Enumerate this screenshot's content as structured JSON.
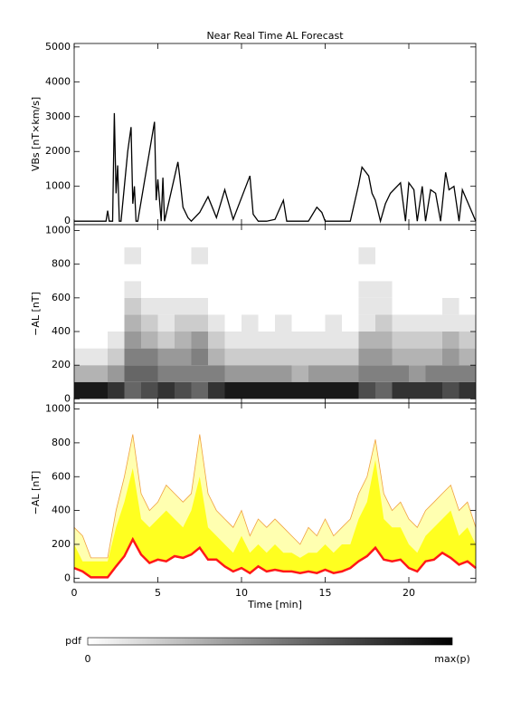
{
  "chart_data": [
    {
      "type": "line",
      "title": "Near Real Time AL Forecast",
      "ylabel": "VBs [nT×km/s]",
      "color": "#000000",
      "xlim": [
        0,
        24
      ],
      "ylim": [
        -100,
        5100
      ],
      "yticks": [
        0,
        1000,
        2000,
        3000,
        4000,
        5000
      ],
      "x": [
        0,
        1.9,
        2.0,
        2.1,
        2.3,
        2.4,
        2.5,
        2.6,
        2.7,
        2.8,
        3.2,
        3.4,
        3.5,
        3.6,
        3.7,
        3.8,
        4.8,
        4.9,
        5.0,
        5.2,
        5.3,
        5.4,
        6.2,
        6.3,
        6.5,
        6.8,
        7.0,
        7.5,
        8.0,
        8.5,
        9.0,
        9.5,
        10.5,
        10.7,
        11.0,
        11.5,
        12.0,
        12.5,
        12.7,
        13.0,
        14.0,
        14.5,
        14.8,
        15.0,
        16.0,
        16.5,
        17.0,
        17.2,
        17.6,
        17.8,
        18.0,
        18.3,
        18.6,
        18.9,
        19.5,
        19.8,
        20.0,
        20.3,
        20.5,
        20.8,
        21.0,
        21.3,
        21.6,
        21.9,
        22.2,
        22.4,
        22.7,
        23.0,
        23.2,
        24.0
      ],
      "values": [
        0,
        0,
        300,
        0,
        0,
        3100,
        800,
        1600,
        0,
        0,
        2000,
        2700,
        500,
        1000,
        0,
        0,
        2850,
        600,
        1200,
        0,
        1250,
        0,
        1700,
        1300,
        400,
        100,
        0,
        250,
        700,
        100,
        900,
        50,
        1300,
        200,
        0,
        0,
        50,
        600,
        0,
        0,
        0,
        400,
        250,
        0,
        0,
        0,
        1050,
        1550,
        1300,
        800,
        600,
        0,
        500,
        800,
        1100,
        0,
        1100,
        900,
        0,
        1000,
        0,
        900,
        800,
        0,
        1400,
        900,
        1000,
        0,
        900,
        0
      ]
    },
    {
      "type": "heatmap",
      "ylabel": "−AL [nT]",
      "xlim": [
        0,
        24
      ],
      "ylim": [
        -25,
        1035
      ],
      "yticks": [
        0,
        200,
        400,
        600,
        800,
        1000
      ],
      "x_bins": [
        0,
        1,
        2,
        3,
        4,
        5,
        6,
        7,
        8,
        9,
        10,
        11,
        12,
        13,
        14,
        15,
        16,
        17,
        18,
        19,
        20,
        21,
        22,
        23,
        24
      ],
      "y_bins": [
        0,
        100,
        200,
        300,
        400,
        500,
        600,
        700,
        800,
        900,
        1000
      ],
      "z": [
        [
          0.9,
          0.3,
          0.1,
          0,
          0,
          0,
          0,
          0,
          0,
          0
        ],
        [
          0.9,
          0.3,
          0.1,
          0,
          0,
          0,
          0,
          0,
          0,
          0
        ],
        [
          0.8,
          0.4,
          0.2,
          0.1,
          0,
          0,
          0,
          0,
          0,
          0
        ],
        [
          0.6,
          0.6,
          0.5,
          0.4,
          0.3,
          0.2,
          0.1,
          0,
          0.1,
          0
        ],
        [
          0.7,
          0.6,
          0.5,
          0.3,
          0.2,
          0.1,
          0,
          0,
          0,
          0
        ],
        [
          0.8,
          0.5,
          0.4,
          0.2,
          0.1,
          0.1,
          0,
          0,
          0,
          0
        ],
        [
          0.7,
          0.5,
          0.4,
          0.3,
          0.2,
          0.1,
          0,
          0,
          0,
          0
        ],
        [
          0.6,
          0.5,
          0.5,
          0.4,
          0.2,
          0.1,
          0,
          0,
          0.1,
          0
        ],
        [
          0.8,
          0.5,
          0.3,
          0.2,
          0.1,
          0,
          0,
          0,
          0,
          0
        ],
        [
          0.9,
          0.4,
          0.2,
          0.1,
          0,
          0,
          0,
          0,
          0,
          0
        ],
        [
          0.9,
          0.4,
          0.2,
          0.1,
          0.1,
          0,
          0,
          0,
          0,
          0
        ],
        [
          0.9,
          0.4,
          0.2,
          0.1,
          0,
          0,
          0,
          0,
          0,
          0
        ],
        [
          0.9,
          0.4,
          0.2,
          0.1,
          0.1,
          0,
          0,
          0,
          0,
          0
        ],
        [
          0.9,
          0.3,
          0.2,
          0.1,
          0,
          0,
          0,
          0,
          0,
          0
        ],
        [
          0.9,
          0.4,
          0.2,
          0.1,
          0,
          0,
          0,
          0,
          0,
          0
        ],
        [
          0.9,
          0.4,
          0.2,
          0.1,
          0.1,
          0,
          0,
          0,
          0,
          0
        ],
        [
          0.9,
          0.4,
          0.2,
          0.1,
          0,
          0,
          0,
          0,
          0,
          0
        ],
        [
          0.7,
          0.5,
          0.4,
          0.3,
          0.1,
          0.1,
          0.1,
          0,
          0.1,
          0
        ],
        [
          0.6,
          0.5,
          0.4,
          0.3,
          0.2,
          0.1,
          0.1,
          0,
          0,
          0
        ],
        [
          0.8,
          0.5,
          0.3,
          0.2,
          0.1,
          0,
          0,
          0,
          0,
          0
        ],
        [
          0.8,
          0.4,
          0.3,
          0.2,
          0.1,
          0,
          0,
          0,
          0,
          0
        ],
        [
          0.8,
          0.5,
          0.3,
          0.2,
          0.1,
          0,
          0,
          0,
          0,
          0
        ],
        [
          0.7,
          0.5,
          0.4,
          0.3,
          0.1,
          0.1,
          0,
          0,
          0,
          0
        ],
        [
          0.8,
          0.5,
          0.3,
          0.2,
          0.1,
          0,
          0,
          0,
          0,
          0
        ]
      ],
      "colorbar": {
        "label": "pdf",
        "min_label": "0",
        "max_label": "max(p)"
      }
    },
    {
      "type": "band",
      "ylabel": "−AL [nT]",
      "xlabel": "Time [min]",
      "xlim": [
        0,
        24
      ],
      "xticks": [
        0,
        5,
        10,
        15,
        20
      ],
      "ylim": [
        -25,
        1035
      ],
      "yticks": [
        0,
        200,
        400,
        600,
        800,
        1000
      ],
      "x": [
        0,
        0.5,
        1,
        1.5,
        2,
        2.5,
        3,
        3.5,
        4,
        4.5,
        5,
        5.5,
        6,
        6.5,
        7,
        7.5,
        8,
        8.5,
        9,
        9.5,
        10,
        10.5,
        11,
        11.5,
        12,
        12.5,
        13,
        13.5,
        14,
        14.5,
        15,
        15.5,
        16,
        16.5,
        17,
        17.5,
        18,
        18.5,
        19,
        19.5,
        20,
        20.5,
        21,
        21.5,
        22,
        22.5,
        23,
        23.5,
        24
      ],
      "series": [
        {
          "color": "#ff1818",
          "values": [
            60,
            40,
            5,
            5,
            5,
            70,
            130,
            230,
            140,
            90,
            110,
            100,
            130,
            120,
            140,
            180,
            110,
            110,
            70,
            40,
            60,
            30,
            70,
            40,
            50,
            40,
            40,
            30,
            40,
            30,
            50,
            30,
            40,
            60,
            100,
            130,
            180,
            110,
            100,
            110,
            60,
            40,
            100,
            110,
            150,
            120,
            80,
            100,
            60
          ]
        },
        {
          "color": "#ffff20",
          "values": [
            200,
            100,
            100,
            100,
            100,
            300,
            450,
            650,
            350,
            300,
            350,
            400,
            350,
            300,
            400,
            600,
            300,
            250,
            200,
            150,
            250,
            150,
            200,
            150,
            200,
            150,
            150,
            120,
            150,
            150,
            200,
            150,
            200,
            200,
            350,
            450,
            700,
            350,
            300,
            300,
            200,
            150,
            250,
            300,
            350,
            400,
            250,
            300,
            200
          ]
        },
        {
          "color": "#f0a040",
          "fill": "#ffffb0",
          "values": [
            300,
            250,
            120,
            120,
            120,
            400,
            600,
            850,
            500,
            400,
            450,
            550,
            500,
            450,
            500,
            850,
            500,
            400,
            350,
            300,
            400,
            250,
            350,
            300,
            350,
            300,
            250,
            200,
            300,
            250,
            350,
            250,
            300,
            350,
            500,
            600,
            820,
            500,
            400,
            450,
            350,
            300,
            400,
            450,
            500,
            550,
            400,
            450,
            300
          ]
        }
      ]
    }
  ]
}
